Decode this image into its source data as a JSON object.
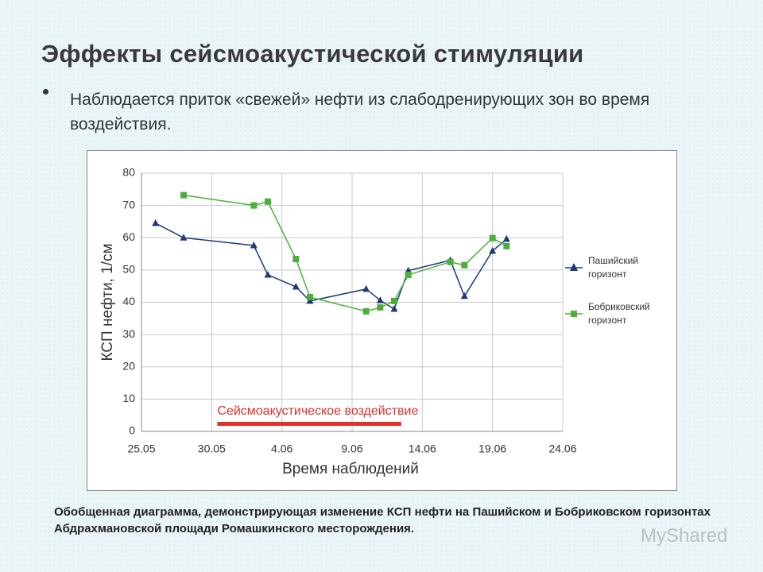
{
  "header": {
    "title": "Эффекты сейсмоакустической стимуляции"
  },
  "bullet": "Наблюдается приток «свежей» нефти из слабодренирующих зон во время воздействия.",
  "caption": "Обобщенная диаграмма, демонстрирующая изменение КСП нефти на Пашийском и Бобриковском горизонтах Абдрахмановской площади Ромашкинского месторождения.",
  "watermark": "MyShared",
  "chart_data": {
    "type": "line",
    "x_label": "Время наблюдений",
    "y_label": "КСП нефти, 1/см",
    "x": [
      1,
      3,
      8,
      9,
      11,
      12,
      16,
      17,
      18,
      19,
      22,
      23,
      25,
      26
    ],
    "series": [
      {
        "name": "Пашийский горизонт",
        "color": "#1f3a7a",
        "marker": "triangle",
        "values": [
          64.5,
          60,
          57.6,
          48.5,
          44.8,
          40.4,
          44.1,
          40.6,
          37.9,
          49.8,
          53,
          41.9,
          55.9,
          59.6
        ]
      },
      {
        "name": "Бобриковский горизонт",
        "color": "#4caf3c",
        "marker": "square",
        "values": [
          null,
          73.2,
          70,
          71.2,
          53.4,
          41.6,
          37.2,
          38.4,
          40.4,
          48.5,
          52.5,
          51.5,
          59.9,
          57.4
        ]
      }
    ],
    "xlim": [
      0,
      30
    ],
    "xticks": [
      {
        "value": 0,
        "label": "25.05"
      },
      {
        "value": 5,
        "label": "30.05"
      },
      {
        "value": 10,
        "label": "4.06"
      },
      {
        "value": 15,
        "label": "9.06"
      },
      {
        "value": 20,
        "label": "14.06"
      },
      {
        "value": 25,
        "label": "19.06"
      },
      {
        "value": 30,
        "label": "24.06"
      }
    ],
    "ylim": [
      0,
      80
    ],
    "yticks": [
      0,
      10,
      20,
      30,
      40,
      50,
      60,
      70,
      80
    ],
    "grid": true,
    "legend": "right",
    "annotation": {
      "text": "Сейсмоакустическое воздействие",
      "start": 5.4,
      "end": 18.5,
      "color": "#e0302a"
    }
  }
}
